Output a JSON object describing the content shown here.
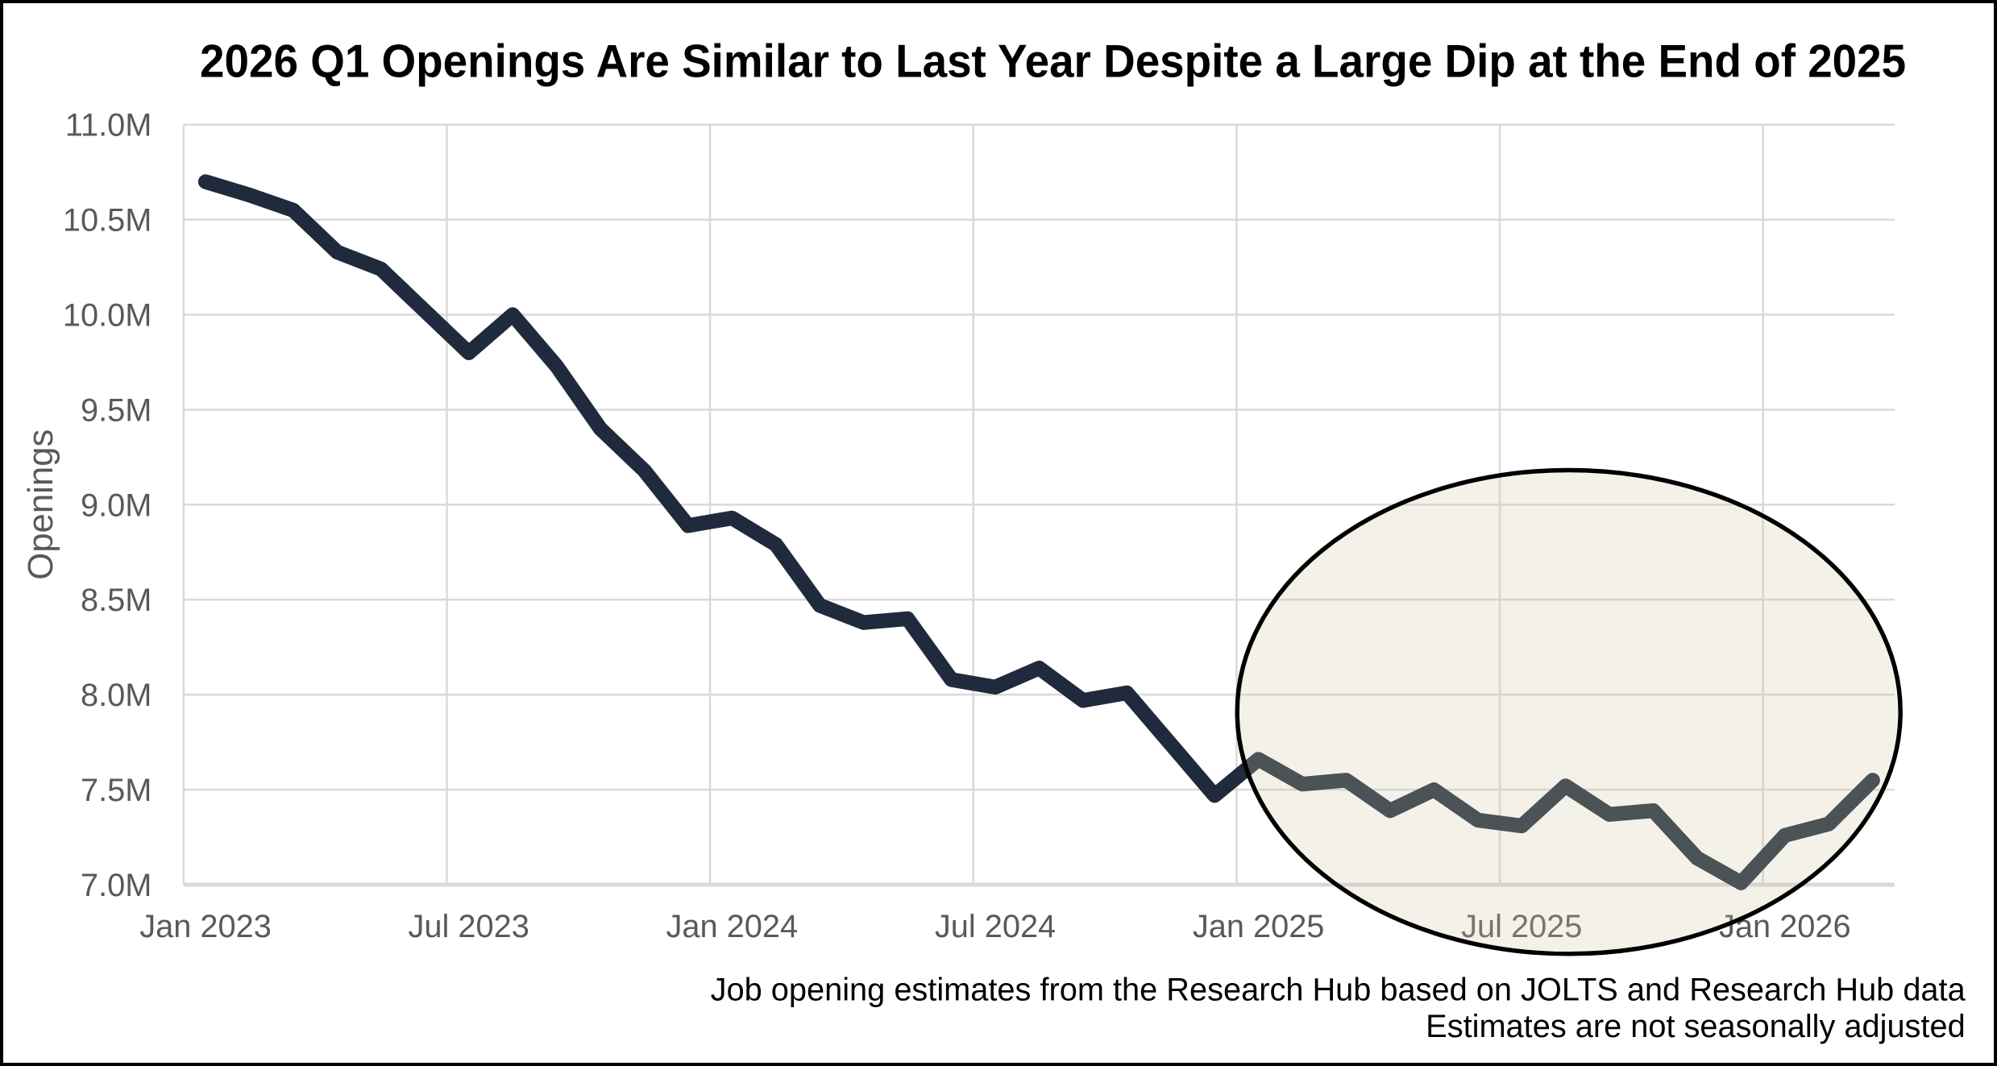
{
  "title": "2026 Q1 Openings Are Similar to Last Year Despite a Large Dip at the End of 2025",
  "y_axis": {
    "label": "Openings",
    "ticks": [
      "11.0M",
      "10.5M",
      "10.0M",
      "9.5M",
      "9.0M",
      "8.5M",
      "8.0M",
      "7.5M",
      "7.0M"
    ]
  },
  "x_axis": {
    "ticks": [
      "Jan 2023",
      "Jul 2023",
      "Jan 2024",
      "Jul 2024",
      "Jan 2025",
      "Jul 2025",
      "Jan 2026"
    ]
  },
  "footnote": {
    "line1": "Job opening estimates from the Research Hub based on JOLTS and Research Hub data",
    "line2": "Estimates are not seasonally adjusted"
  },
  "colors": {
    "line": "#1f2b3c",
    "gridline": "#d9d9d9",
    "axis_text": "#595959",
    "title_text": "#000000",
    "ellipse_stroke": "#000000",
    "ellipse_fill": "#d5cca2"
  },
  "chart_data": {
    "type": "line",
    "title": "2026 Q1 Openings Are Similar to Last Year Despite a Large Dip at the End of 2025",
    "xlabel": "",
    "ylabel": "Openings",
    "ylim": [
      7.0,
      11.0
    ],
    "y_tick_step_millions": 0.5,
    "grid": true,
    "legend_position": "none",
    "units": "millions of job openings",
    "x": [
      "Jan 2023",
      "Feb 2023",
      "Mar 2023",
      "Apr 2023",
      "May 2023",
      "Jun 2023",
      "Jul 2023",
      "Aug 2023",
      "Sep 2023",
      "Oct 2023",
      "Nov 2023",
      "Dec 2023",
      "Jan 2024",
      "Feb 2024",
      "Mar 2024",
      "Apr 2024",
      "May 2024",
      "Jun 2024",
      "Jul 2024",
      "Aug 2024",
      "Sep 2024",
      "Oct 2024",
      "Nov 2024",
      "Dec 2024",
      "Jan 2025",
      "Feb 2025",
      "Mar 2025",
      "Apr 2025",
      "May 2025",
      "Jun 2025",
      "Jul 2025",
      "Aug 2025",
      "Sep 2025",
      "Oct 2025",
      "Nov 2025",
      "Dec 2025",
      "Jan 2026",
      "Feb 2026",
      "Mar 2026"
    ],
    "series": [
      {
        "name": "Job openings",
        "values": [
          10.7,
          10.63,
          10.55,
          10.33,
          10.24,
          10.02,
          9.8,
          10.0,
          9.73,
          9.4,
          9.18,
          8.89,
          8.93,
          8.79,
          8.47,
          8.38,
          8.4,
          8.08,
          8.04,
          8.14,
          7.97,
          8.01,
          7.74,
          7.47,
          7.66,
          7.53,
          7.55,
          7.39,
          7.5,
          7.34,
          7.31,
          7.52,
          7.37,
          7.39,
          7.14,
          7.01,
          7.26,
          7.32,
          7.55
        ]
      }
    ],
    "annotations": [
      {
        "type": "ellipse-highlight",
        "covers_x_range": [
          "Jan 2025",
          "Mar 2026"
        ],
        "note": "Hand-drawn style ellipse highlighting the 2025 dip and the 2026 Q1 recovery"
      }
    ]
  }
}
